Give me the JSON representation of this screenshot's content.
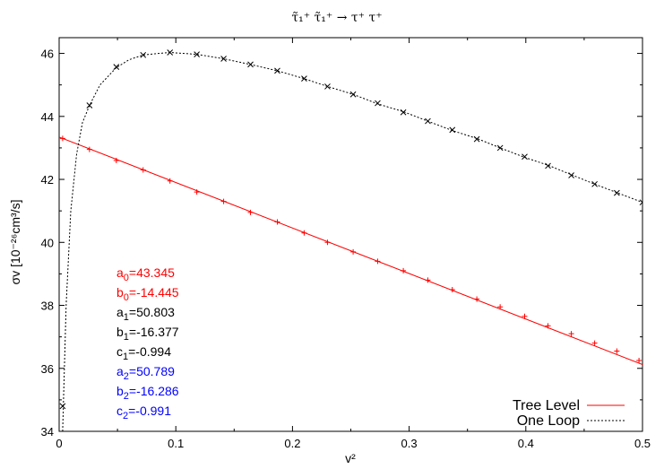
{
  "chart_data": {
    "type": "line",
    "title": "τ̃₁⁺ τ̃₁⁺ → τ⁺ τ⁺",
    "xlabel": "v²",
    "ylabel": "σv [10⁻²⁶cm³/s]",
    "xlim": [
      0,
      0.5
    ],
    "ylim": [
      34,
      46.5
    ],
    "x_ticks": [
      "0",
      "0.1",
      "0.2",
      "0.3",
      "0.4",
      "0.5"
    ],
    "y_ticks": [
      "34",
      "36",
      "38",
      "40",
      "42",
      "44",
      "46"
    ],
    "grid": false,
    "legend_position": "bottom-right",
    "series": [
      {
        "name": "Tree Level",
        "color": "#ff0000",
        "style": "solid",
        "marker": "+",
        "line": {
          "x": [
            0,
            0.5
          ],
          "y": [
            43.345,
            36.12
          ]
        },
        "points": {
          "x": [
            0.003,
            0.026,
            0.049,
            0.072,
            0.095,
            0.118,
            0.141,
            0.164,
            0.187,
            0.21,
            0.23,
            0.252,
            0.273,
            0.295,
            0.316,
            0.337,
            0.358,
            0.378,
            0.399,
            0.419,
            0.439,
            0.459,
            0.478,
            0.497
          ],
          "y": [
            43.3,
            42.95,
            42.6,
            42.3,
            41.95,
            41.6,
            41.3,
            40.95,
            40.65,
            40.3,
            40.0,
            39.7,
            39.4,
            39.1,
            38.8,
            38.5,
            38.2,
            37.95,
            37.65,
            37.35,
            37.1,
            36.8,
            36.55,
            36.25
          ]
        }
      },
      {
        "name": "One Loop",
        "color": "#000000",
        "style": "dotted",
        "marker": "x",
        "line": {
          "x": [
            0.003,
            0.006,
            0.01,
            0.015,
            0.02,
            0.026,
            0.035,
            0.049,
            0.06,
            0.072,
            0.085,
            0.095,
            0.118,
            0.141,
            0.164,
            0.187,
            0.21,
            0.23,
            0.252,
            0.273,
            0.295,
            0.316,
            0.337,
            0.358,
            0.378,
            0.399,
            0.419,
            0.439,
            0.459,
            0.478,
            0.5
          ],
          "y": [
            34.0,
            38.0,
            41.0,
            42.8,
            43.8,
            44.35,
            45.0,
            45.55,
            45.8,
            45.95,
            46.0,
            46.03,
            45.97,
            45.83,
            45.65,
            45.45,
            45.2,
            44.95,
            44.7,
            44.4,
            44.15,
            43.85,
            43.55,
            43.3,
            43.0,
            42.7,
            42.45,
            42.15,
            41.85,
            41.58,
            41.27
          ]
        },
        "points": {
          "x": [
            0.003,
            0.026,
            0.049,
            0.072,
            0.095,
            0.118,
            0.141,
            0.164,
            0.187,
            0.21,
            0.23,
            0.252,
            0.273,
            0.295,
            0.316,
            0.337,
            0.358,
            0.378,
            0.399,
            0.419,
            0.439,
            0.459,
            0.478,
            0.5
          ],
          "y": [
            34.8,
            44.35,
            45.57,
            45.95,
            46.03,
            45.97,
            45.83,
            45.65,
            45.45,
            45.2,
            44.95,
            44.7,
            44.42,
            44.13,
            43.85,
            43.57,
            43.28,
            43.0,
            42.72,
            42.43,
            42.13,
            41.85,
            41.57,
            41.27
          ]
        }
      }
    ],
    "annotations": [
      {
        "text": "a0=43.345",
        "color": "#ff0000"
      },
      {
        "text": "b0=-14.445",
        "color": "#ff0000"
      },
      {
        "text": "a1=50.803",
        "color": "#000000"
      },
      {
        "text": "b1=-16.377",
        "color": "#000000"
      },
      {
        "text": "c1=-0.994",
        "color": "#000000"
      },
      {
        "text": "a2=50.789",
        "color": "#0000ff"
      },
      {
        "text": "b2=-16.286",
        "color": "#0000ff"
      },
      {
        "text": "c2=-0.991",
        "color": "#0000ff"
      }
    ]
  }
}
